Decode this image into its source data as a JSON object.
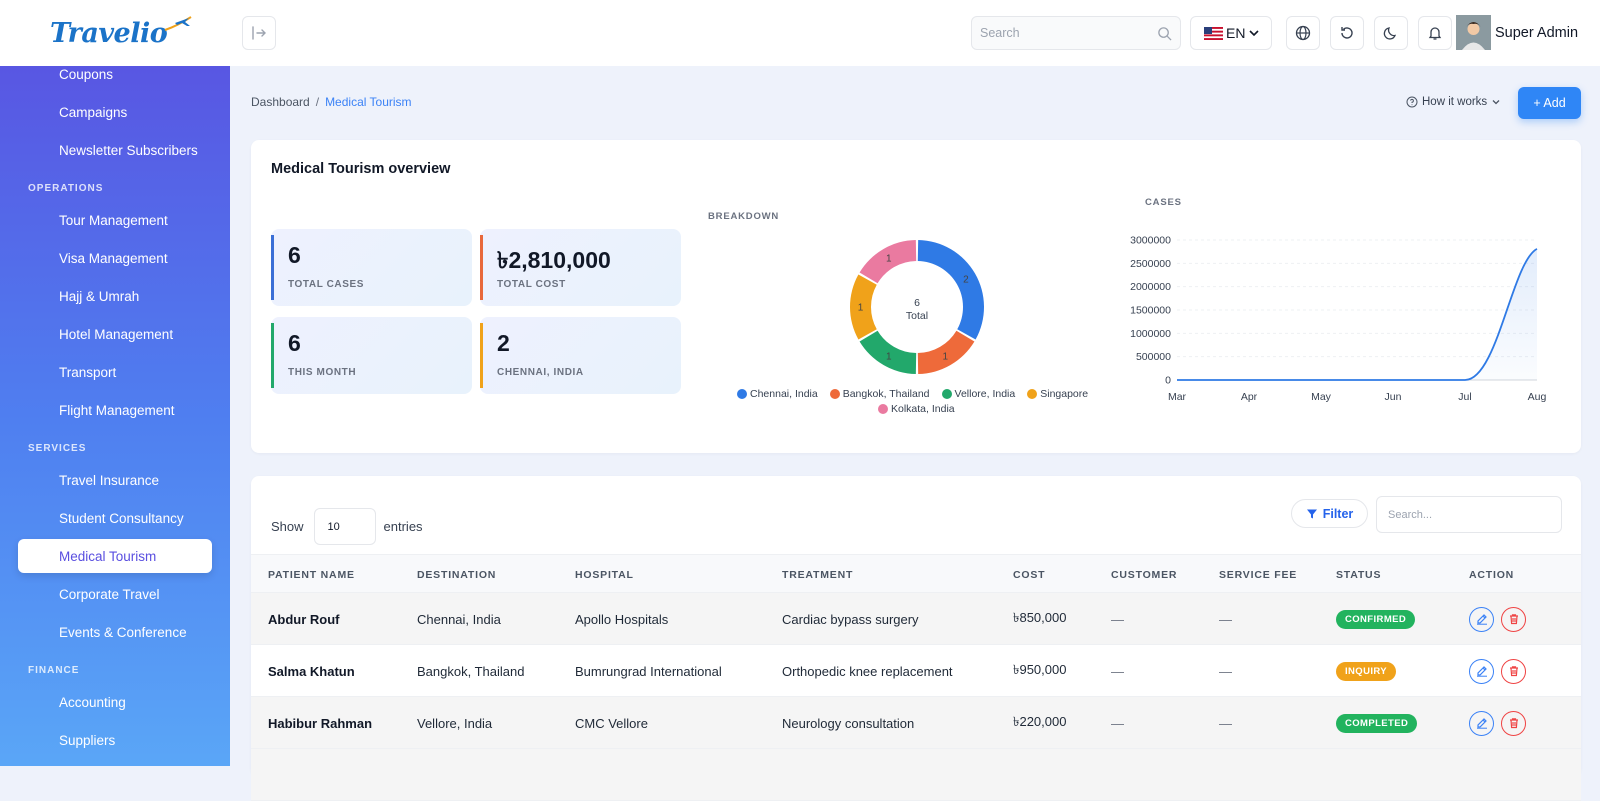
{
  "brand": {
    "logo_text": "Travelio"
  },
  "sidebar": {
    "groups": [
      {
        "section": "",
        "items": [
          {
            "label": "Coupons",
            "icon": "tag-icon",
            "chevron": false
          },
          {
            "label": "Campaigns",
            "icon": "message-icon",
            "chevron": false
          },
          {
            "label": "Newsletter Subscribers",
            "icon": "mail-icon",
            "chevron": false
          }
        ]
      },
      {
        "section": "OPERATIONS",
        "items": [
          {
            "label": "Tour Management",
            "icon": "map-icon",
            "chevron": true
          },
          {
            "label": "Visa Management",
            "icon": "document-icon",
            "chevron": true
          },
          {
            "label": "Hajj & Umrah",
            "icon": "compass-icon",
            "chevron": true
          },
          {
            "label": "Hotel Management",
            "icon": "home-icon",
            "chevron": true
          },
          {
            "label": "Transport",
            "icon": "rocket-icon",
            "chevron": true
          },
          {
            "label": "Flight Management",
            "icon": "plane-icon",
            "chevron": true
          }
        ]
      },
      {
        "section": "SERVICES",
        "items": [
          {
            "label": "Travel Insurance",
            "icon": "shield-icon",
            "chevron": false
          },
          {
            "label": "Student Consultancy",
            "icon": "graduation-cap-icon",
            "chevron": false
          },
          {
            "label": "Medical Tourism",
            "icon": "heart-icon",
            "chevron": false,
            "active": true
          },
          {
            "label": "Corporate Travel",
            "icon": "briefcase-icon",
            "chevron": false
          },
          {
            "label": "Events & Conference",
            "icon": "calendar-icon",
            "chevron": false
          }
        ]
      },
      {
        "section": "FINANCE",
        "items": [
          {
            "label": "Accounting",
            "icon": "calculator-icon",
            "chevron": true
          },
          {
            "label": "Suppliers",
            "icon": "briefcase-icon",
            "chevron": true
          }
        ]
      }
    ]
  },
  "topbar": {
    "search_placeholder": "Search",
    "language": "EN",
    "user_name": "Super Admin"
  },
  "breadcrumb": {
    "home": "Dashboard",
    "separator": "/",
    "current": "Medical Tourism"
  },
  "header_actions": {
    "how_it_works": "How it works",
    "add_label": "+ Add"
  },
  "overview": {
    "title": "Medical Tourism overview",
    "stats": [
      {
        "value": "6",
        "label": "TOTAL CASES",
        "color": "#3b6fd6"
      },
      {
        "value": "৳2,810,000",
        "label": "TOTAL COST",
        "color": "#e8683b"
      },
      {
        "value": "6",
        "label": "THIS MONTH",
        "color": "#22a86b"
      },
      {
        "value": "2",
        "label": "CHENNAI, INDIA",
        "color": "#f0a21a"
      }
    ]
  },
  "chart_data": [
    {
      "type": "pie",
      "title": "BREAKDOWN",
      "center_value": "6",
      "center_label": "Total",
      "categories": [
        "Chennai, India",
        "Bangkok, Thailand",
        "Vellore, India",
        "Singapore",
        "Kolkata, India"
      ],
      "values": [
        2,
        1,
        1,
        1,
        1
      ],
      "value_labels": [
        "2",
        "1",
        "1",
        "1",
        "1"
      ],
      "colors": [
        "#2f7ae5",
        "#ee6a3a",
        "#22a86b",
        "#f0a21a",
        "#ea7aa0"
      ],
      "legend": "bottom"
    },
    {
      "type": "area",
      "title": "CASES",
      "x": [
        "Mar",
        "Apr",
        "May",
        "Jun",
        "Jul",
        "Aug"
      ],
      "series": [
        {
          "values": [
            0,
            0,
            0,
            0,
            0,
            2810000
          ]
        }
      ],
      "y_ticks": [
        "3000000",
        "2500000",
        "2000000",
        "1500000",
        "1000000",
        "500000",
        "0"
      ],
      "ylim": [
        0,
        3000000
      ],
      "color": "#2f7ae5"
    }
  ],
  "table": {
    "show_label": "Show",
    "entries_value": "10",
    "entries_label": "entries",
    "filter_label": "Filter",
    "search_placeholder": "Search...",
    "columns": [
      "PATIENT NAME",
      "DESTINATION",
      "HOSPITAL",
      "TREATMENT",
      "COST",
      "CUSTOMER",
      "SERVICE FEE",
      "STATUS",
      "ACTION"
    ],
    "rows": [
      {
        "patient": "Abdur Rouf",
        "destination": "Chennai, India",
        "hospital": "Apollo Hospitals",
        "treatment": "Cardiac bypass surgery",
        "cost": "৳850,000",
        "customer": "—",
        "service_fee": "—",
        "status": "CONFIRMED",
        "status_color": "#22b35e"
      },
      {
        "patient": "Salma Khatun",
        "destination": "Bangkok, Thailand",
        "hospital": "Bumrungrad International",
        "treatment": "Orthopedic knee replacement",
        "cost": "৳950,000",
        "customer": "—",
        "service_fee": "—",
        "status": "INQUIRY",
        "status_color": "#f0a21a"
      },
      {
        "patient": "Habibur Rahman",
        "destination": "Vellore, India",
        "hospital": "CMC Vellore",
        "treatment": "Neurology consultation",
        "cost": "৳220,000",
        "customer": "—",
        "service_fee": "—",
        "status": "COMPLETED",
        "status_color": "#22b35e"
      }
    ]
  }
}
